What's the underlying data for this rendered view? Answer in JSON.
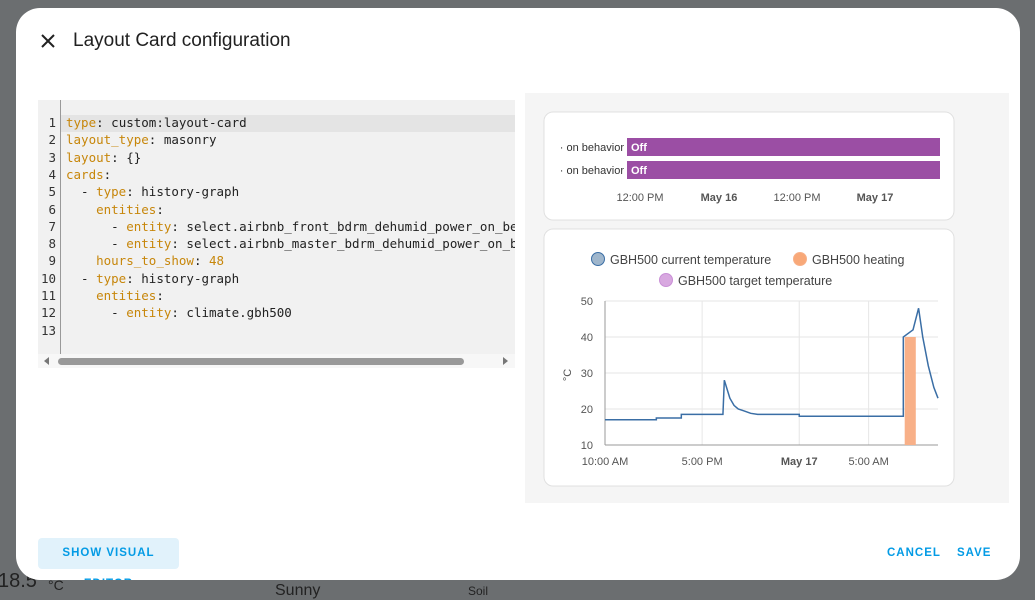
{
  "background": {
    "texts": [
      "18.5",
      "°C",
      "Sunny",
      "Soil"
    ]
  },
  "dialog": {
    "title": "Layout Card configuration",
    "code_lines": [
      "type: custom:layout-card",
      "layout_type: masonry",
      "layout: {}",
      "cards:",
      "  - type: history-graph",
      "    entities:",
      "      - entity: select.airbnb_front_bdrm_dehumid_power_on_behav",
      "      - entity: select.airbnb_master_bdrm_dehumid_power_on_beha",
      "    hours_to_show: 48",
      "  - type: history-graph",
      "    entities:",
      "      - entity: climate.gbh500",
      ""
    ],
    "line_numbers": [
      "1",
      "2",
      "3",
      "4",
      "5",
      "6",
      "7",
      "8",
      "9",
      "10",
      "11",
      "12",
      "13"
    ],
    "buttons": {
      "visual_editor": "SHOW VISUAL EDITOR",
      "cancel": "CANCEL",
      "save": "SAVE"
    },
    "timeline": {
      "rows": [
        {
          "label": "· on behavior",
          "state": "Off"
        },
        {
          "label": "· on behavior",
          "state": "Off"
        }
      ],
      "color": "#9b4ea4",
      "axis_labels": [
        "12:00 PM",
        "May 16",
        "12:00 PM",
        "May 17"
      ]
    },
    "chart_data": {
      "type": "line",
      "y_label": "°C",
      "xlim": [
        0,
        24
      ],
      "xticks": [
        {
          "value": 0,
          "label": "10:00 AM"
        },
        {
          "value": 7,
          "label": "5:00 PM"
        },
        {
          "value": 14,
          "label": "May 17"
        },
        {
          "value": 19,
          "label": "5:00 AM"
        }
      ],
      "ylim": [
        10,
        50
      ],
      "yticks": [
        10,
        20,
        30,
        40,
        50
      ],
      "grid": true,
      "series": [
        {
          "name": "GBH500 current temperature",
          "color": "#3a6ea5",
          "legend_fill": "#9fb6cc",
          "x": [
            0,
            3.7,
            3.7,
            5.5,
            5.5,
            8.5,
            8.6,
            9.0,
            9.3,
            9.6,
            10,
            10.5,
            11,
            14,
            14,
            21.5,
            21.5,
            22.2,
            22.6,
            22.9,
            23.3,
            23.7,
            24
          ],
          "values": [
            17,
            17,
            17.5,
            17.5,
            18.5,
            18.5,
            28,
            23,
            21,
            20,
            19.5,
            18.8,
            18.5,
            18.5,
            18,
            18,
            40,
            42,
            48,
            40,
            32,
            26,
            23
          ]
        },
        {
          "name": "GBH500 heating",
          "color": "#f8b088",
          "legend_fill": "#f8a878",
          "x": [
            21.6,
            22.4
          ],
          "values": [
            40,
            40
          ]
        },
        {
          "name": "GBH500 target temperature",
          "color": "#c98fd6",
          "legend_fill": "#d8a8e0",
          "x": [],
          "values": []
        }
      ]
    }
  }
}
